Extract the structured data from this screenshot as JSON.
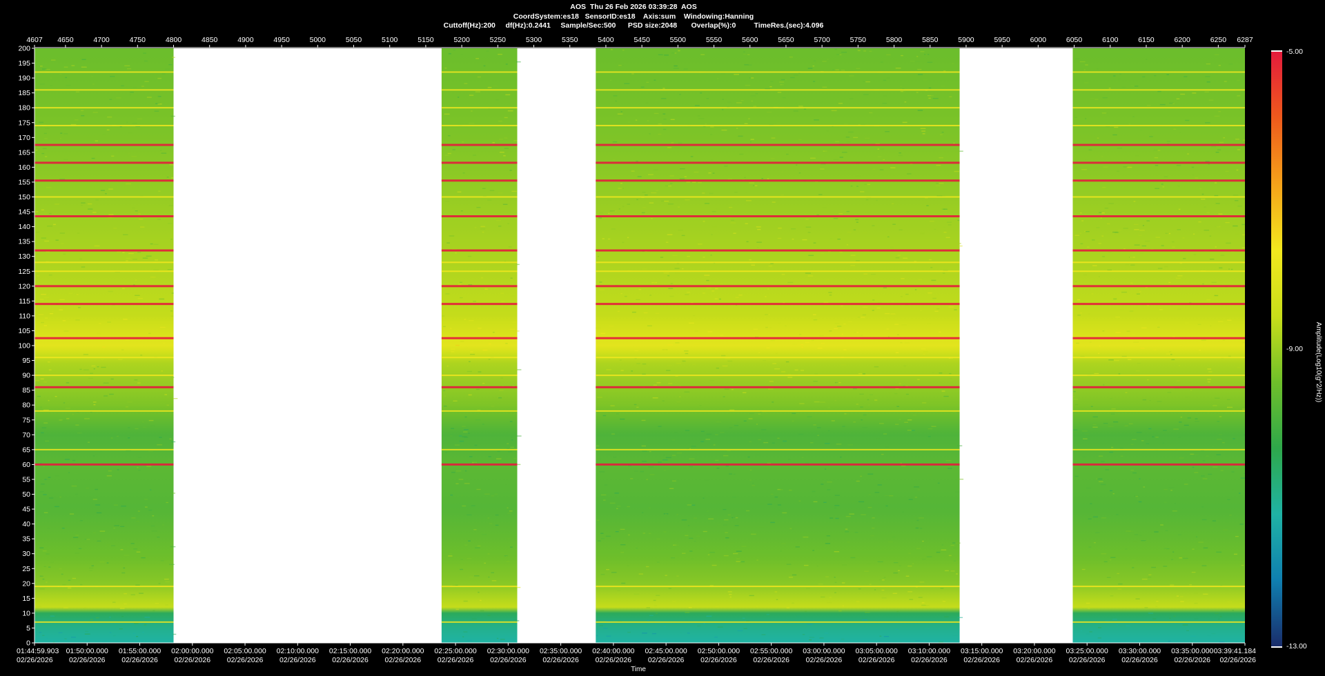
{
  "header": {
    "line1": "AOS  Thu 26 Feb 2026 03:39:28  AOS",
    "line2": "CoordSystem:es18   SensorID:es18    Axis:sum    Windowing:Hanning",
    "line3": "Cuttoff(Hz):200     df(Hz):0.2441     Sample/Sec:500      PSD size:2048       Overlap(%):0         TimeRes.(sec):4.096"
  },
  "colors": {
    "background": "#000000",
    "gap": "#ffffff",
    "scale": [
      "#1a2d6b",
      "#0f7fb0",
      "#1fb3a5",
      "#2ea84a",
      "#6fbf2a",
      "#c9de1a",
      "#f3e81e",
      "#f5a21a",
      "#ef5a1c",
      "#e41b3c"
    ]
  },
  "chart_data": {
    "type": "heatmap",
    "title": "AOS  Thu 26 Feb 2026 03:39:28  AOS",
    "xlabel": "Time",
    "ylabel": "",
    "colorbar_label": "Amplitude(Log10(g^2/Hz))",
    "colorbar_range": [
      -13.0,
      -5.0
    ],
    "colorbar_ticks": [
      "-5.00",
      "-9.00",
      "-13.00"
    ],
    "ylim": [
      0,
      200
    ],
    "yticks": [
      0,
      5,
      10,
      15,
      20,
      25,
      30,
      35,
      40,
      45,
      50,
      55,
      60,
      65,
      70,
      75,
      80,
      85,
      90,
      95,
      100,
      105,
      110,
      115,
      120,
      125,
      130,
      135,
      140,
      145,
      150,
      155,
      160,
      165,
      170,
      175,
      180,
      185,
      190,
      195,
      200
    ],
    "top_axis_range": [
      4607,
      6287
    ],
    "top_ticks": [
      "4607",
      "4650",
      "4700",
      "4750",
      "4800",
      "4850",
      "4900",
      "4950",
      "5000",
      "5050",
      "5100",
      "5150",
      "5200",
      "5250",
      "5300",
      "5350",
      "5400",
      "5450",
      "5500",
      "5550",
      "5600",
      "5650",
      "5700",
      "5750",
      "5800",
      "5850",
      "5900",
      "5950",
      "6000",
      "6050",
      "6100",
      "6150",
      "6200",
      "6250",
      "6287"
    ],
    "time_ticks": [
      "01:44:59.903",
      "01:50:00.000",
      "01:55:00.000",
      "02:00:00.000",
      "02:05:00.000",
      "02:10:00.000",
      "02:15:00.000",
      "02:20:00.000",
      "02:25:00.000",
      "02:30:00.000",
      "02:35:00.000",
      "02:40:00.000",
      "02:45:00.000",
      "02:50:00.000",
      "02:55:00.000",
      "03:00:00.000",
      "03:05:00.000",
      "03:10:00.000",
      "03:15:00.000",
      "03:20:00.000",
      "03:25:00.000",
      "03:30:00.000",
      "03:35:00.000",
      "03:39:41.184"
    ],
    "date_label": "02/26/2026",
    "data_segments": [
      {
        "start": 4607,
        "end": 4800
      },
      {
        "start": 5172,
        "end": 5277
      },
      {
        "start": 5386,
        "end": 5891
      },
      {
        "start": 6048,
        "end": 6287
      }
    ],
    "strong_lines_hz": [
      155.5,
      167.5,
      143.5,
      132,
      120,
      114,
      102.5,
      161.5,
      60,
      86
    ],
    "weak_lines_hz": [
      192,
      186,
      180,
      174,
      150,
      128,
      125,
      96,
      90,
      78,
      65,
      19,
      7
    ],
    "amplitude_profile": [
      {
        "hz": 0,
        "level": -11.2
      },
      {
        "hz": 5,
        "level": -11.0
      },
      {
        "hz": 10,
        "level": -10.5
      },
      {
        "hz": 12,
        "level": -8.6
      },
      {
        "hz": 15,
        "level": -8.8
      },
      {
        "hz": 20,
        "level": -9.2
      },
      {
        "hz": 30,
        "level": -9.5
      },
      {
        "hz": 45,
        "level": -9.8
      },
      {
        "hz": 60,
        "level": -9.7
      },
      {
        "hz": 70,
        "level": -9.9
      },
      {
        "hz": 80,
        "level": -9.3
      },
      {
        "hz": 95,
        "level": -8.8
      },
      {
        "hz": 100,
        "level": -8.0
      },
      {
        "hz": 110,
        "level": -8.6
      },
      {
        "hz": 125,
        "level": -8.8
      },
      {
        "hz": 145,
        "level": -9.0
      },
      {
        "hz": 170,
        "level": -9.3
      },
      {
        "hz": 200,
        "level": -9.5
      }
    ]
  }
}
